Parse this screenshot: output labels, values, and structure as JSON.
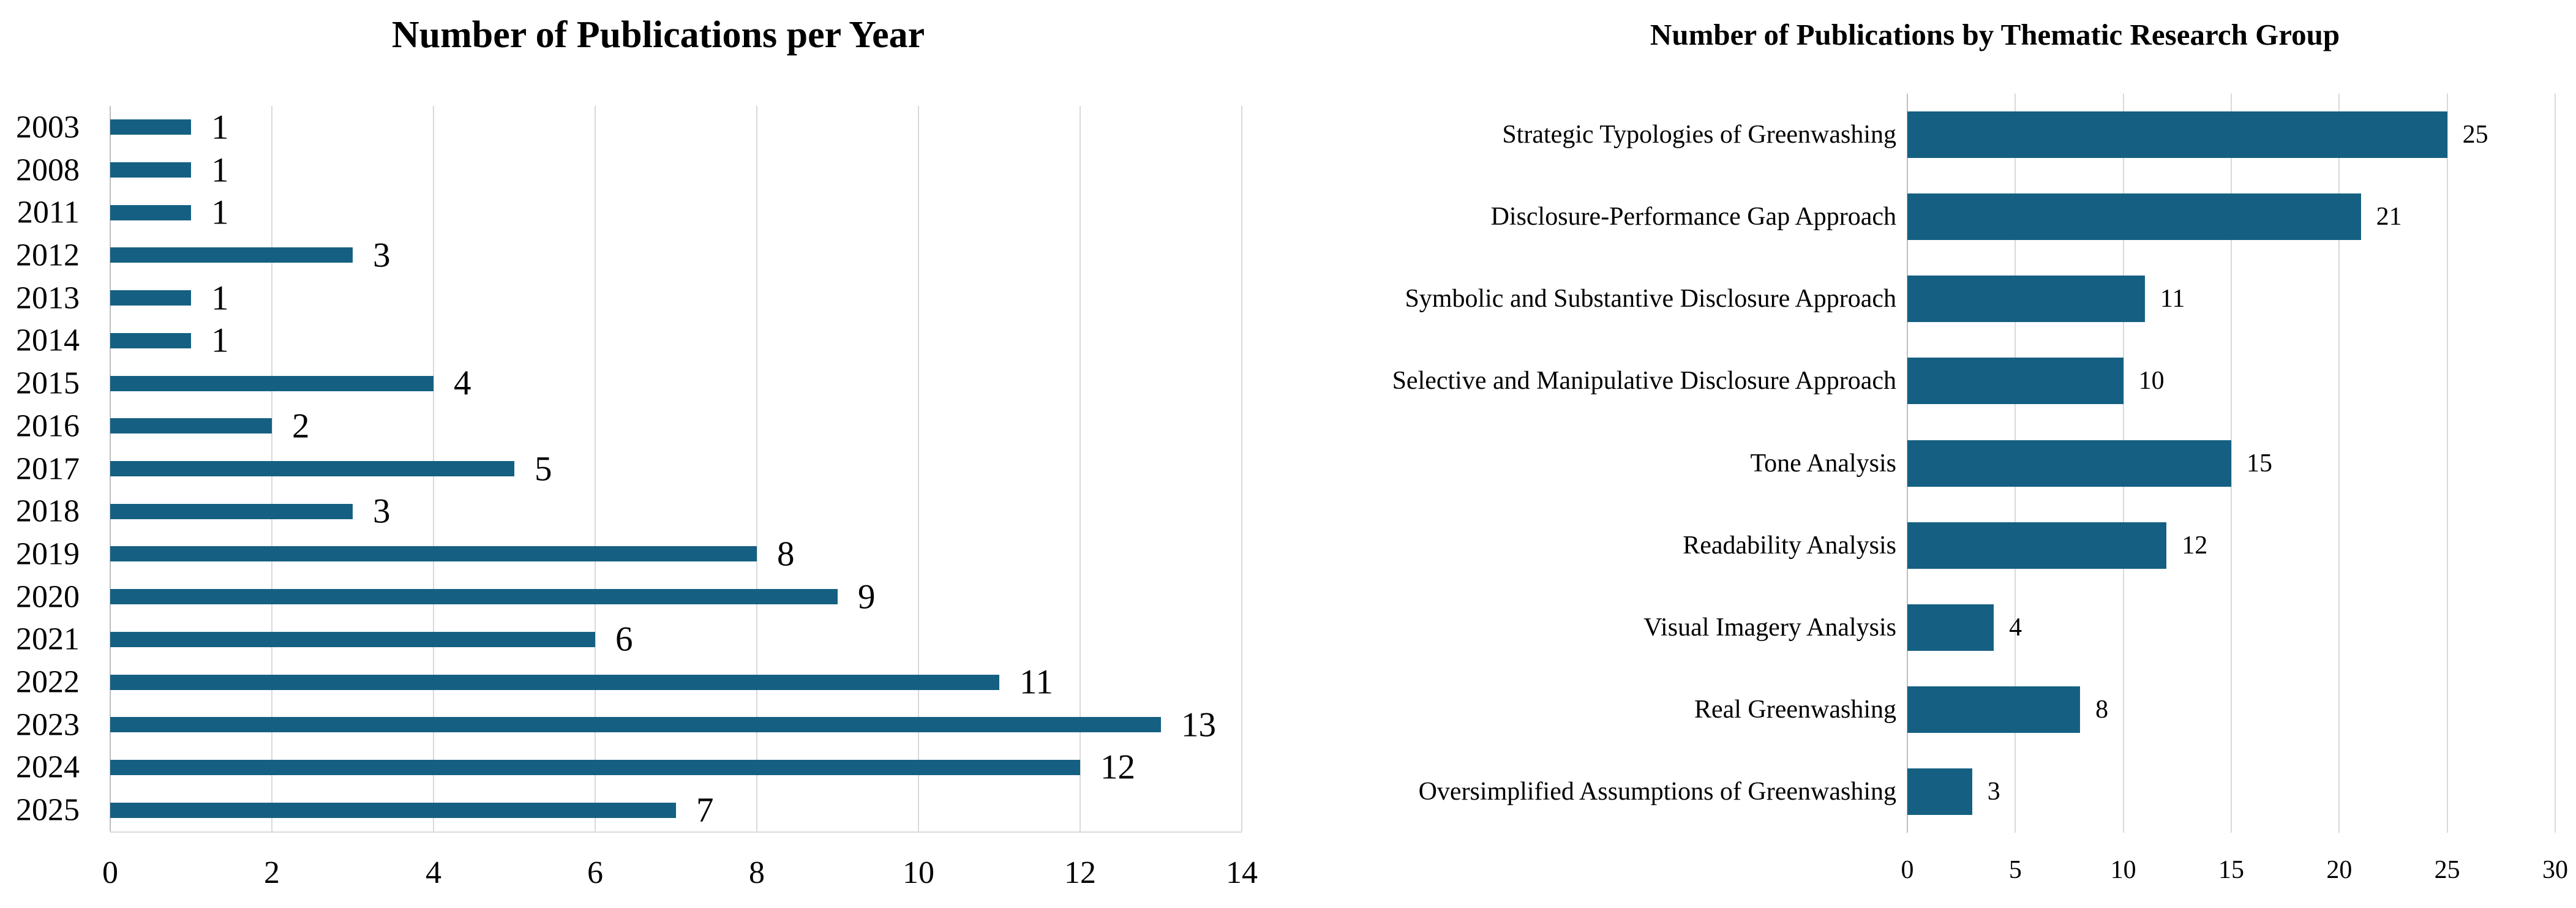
{
  "page": {
    "background": "#ffffff",
    "text_color": "#000000",
    "gridline_color": "#D9D9D9",
    "axis_line_color": "#BFBFBF"
  },
  "chart_data": [
    {
      "type": "bar",
      "orientation": "horizontal",
      "title": "Number of Publications per Year",
      "categories": [
        "2003",
        "2008",
        "2011",
        "2012",
        "2013",
        "2014",
        "2015",
        "2016",
        "2017",
        "2018",
        "2019",
        "2020",
        "2021",
        "2022",
        "2023",
        "2024",
        "2025"
      ],
      "values": [
        1,
        1,
        1,
        3,
        1,
        1,
        4,
        2,
        5,
        3,
        8,
        9,
        6,
        11,
        13,
        12,
        7
      ],
      "xlabel": "",
      "ylabel": "",
      "xlim": [
        0,
        14
      ],
      "xticks": [
        0,
        2,
        4,
        6,
        8,
        10,
        12,
        14
      ],
      "grid": "vertical",
      "data_labels": true,
      "legend": "none",
      "bar_color": "#156082"
    },
    {
      "type": "bar",
      "orientation": "horizontal",
      "title": "Number of Publications by Thematic Research Group",
      "categories": [
        "Strategic Typologies of Greenwashing",
        "Disclosure-Performance Gap Approach",
        "Symbolic and Substantive Disclosure Approach",
        "Selective and Manipulative Disclosure Approach",
        "Tone Analysis",
        "Readability Analysis",
        "Visual Imagery Analysis",
        "Real Greenwashing",
        "Oversimplified Assumptions of Greenwashing"
      ],
      "values": [
        25,
        21,
        11,
        10,
        15,
        12,
        4,
        8,
        3
      ],
      "xlabel": "",
      "ylabel": "",
      "xlim": [
        0,
        30
      ],
      "xticks": [
        0,
        5,
        10,
        15,
        20,
        25,
        30
      ],
      "grid": "vertical",
      "data_labels": true,
      "legend": "none",
      "bar_color": "#156082"
    }
  ]
}
